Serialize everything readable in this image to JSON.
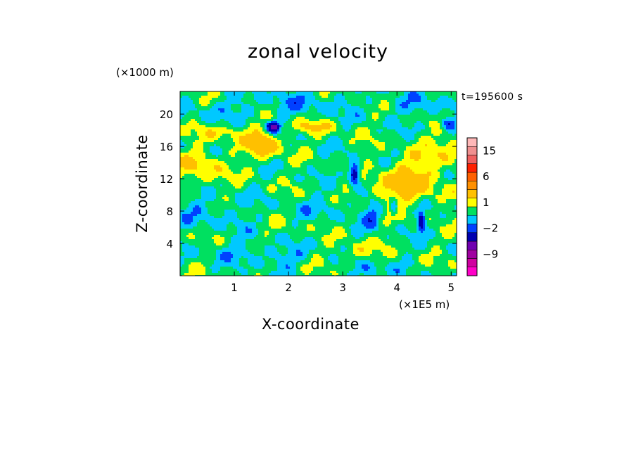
{
  "chart_data": {
    "type": "heatmap",
    "title": "zonal velocity",
    "xlabel": "X-coordinate",
    "ylabel": "Z-coordinate",
    "x_multiplier_label": "(×1E5 m)",
    "y_multiplier_label": "(×1000 m)",
    "time_label": "t=195600 s",
    "xlim": [
      0,
      5.1
    ],
    "ylim": [
      0,
      22.8
    ],
    "x_ticks": [
      "1",
      "2",
      "3",
      "4",
      "5"
    ],
    "y_ticks": [
      "4",
      "8",
      "12",
      "16",
      "20"
    ],
    "colorbar": {
      "levels": [
        -15,
        -12,
        -9,
        -6,
        -4,
        -2,
        -1,
        0,
        1,
        2,
        4,
        6,
        9,
        12,
        15,
        18
      ],
      "labels": [
        "15",
        "6",
        "1",
        "−2",
        "−9"
      ],
      "label_values": [
        15,
        6,
        1,
        -2,
        -9
      ],
      "colors": [
        "#ff00c8",
        "#d000a0",
        "#a000a0",
        "#7000b0",
        "#0000b0",
        "#0040ff",
        "#00c8ff",
        "#00e060",
        "#ffff00",
        "#ffc000",
        "#ff9000",
        "#ff6000",
        "#ff2000",
        "#f06060",
        "#f09090",
        "#ffb8b8"
      ]
    },
    "background_value": 0.4,
    "features": [
      {
        "kind": "warm",
        "x": 0.4,
        "z": 13.5,
        "sx": 0.32,
        "sy": 1.6,
        "amp": 1.6
      },
      {
        "kind": "warm",
        "x": 0.8,
        "z": 17.8,
        "sx": 0.35,
        "sy": 0.7,
        "amp": 1.2
      },
      {
        "kind": "warm",
        "x": 1.55,
        "z": 16.3,
        "sx": 0.22,
        "sy": 1.2,
        "amp": 2.6
      },
      {
        "kind": "cold",
        "x": 1.72,
        "z": 18.4,
        "sx": 0.08,
        "sy": 0.45,
        "amp": -5.5
      },
      {
        "kind": "warm",
        "x": 2.45,
        "z": 18.4,
        "sx": 0.3,
        "sy": 0.6,
        "amp": 1.4
      },
      {
        "kind": "cold",
        "x": 3.22,
        "z": 12.6,
        "sx": 0.07,
        "sy": 0.9,
        "amp": -4.5
      },
      {
        "kind": "cold",
        "x": 3.55,
        "z": 7.7,
        "sx": 0.12,
        "sy": 1.4,
        "amp": -1.6
      },
      {
        "kind": "cold",
        "x": 3.5,
        "z": 0.6,
        "sx": 0.2,
        "sy": 0.8,
        "amp": -1.5
      },
      {
        "kind": "warm",
        "x": 3.3,
        "z": 3.0,
        "sx": 0.25,
        "sy": 0.8,
        "amp": 1.3
      },
      {
        "kind": "warm",
        "x": 4.35,
        "z": 12.0,
        "sx": 0.4,
        "sy": 2.0,
        "amp": 2.0
      },
      {
        "kind": "warm",
        "x": 3.8,
        "z": 10.5,
        "sx": 0.3,
        "sy": 1.4,
        "amp": 1.3
      },
      {
        "kind": "cold",
        "x": 4.45,
        "z": 6.7,
        "sx": 0.05,
        "sy": 0.9,
        "amp": -3.8
      },
      {
        "kind": "cold",
        "x": 3.95,
        "z": 8.4,
        "sx": 0.05,
        "sy": 0.6,
        "amp": -3.0
      },
      {
        "kind": "cold",
        "x": 4.95,
        "z": 18.8,
        "sx": 0.1,
        "sy": 0.6,
        "amp": -2.8
      },
      {
        "kind": "warm",
        "x": 4.95,
        "z": 16.0,
        "sx": 0.25,
        "sy": 1.3,
        "amp": 1.5
      },
      {
        "kind": "cold",
        "x": 1.9,
        "z": 2.3,
        "sx": 0.35,
        "sy": 0.8,
        "amp": -1.0
      },
      {
        "kind": "cold",
        "x": 0.6,
        "z": 8.0,
        "sx": 0.5,
        "sy": 1.5,
        "amp": -0.8
      },
      {
        "kind": "cold",
        "x": 1.1,
        "z": 3.0,
        "sx": 0.4,
        "sy": 0.8,
        "amp": -0.9
      },
      {
        "kind": "cold",
        "x": 2.3,
        "z": 21.5,
        "sx": 0.6,
        "sy": 1.2,
        "amp": -0.9
      },
      {
        "kind": "cold",
        "x": 4.4,
        "z": 21.0,
        "sx": 0.5,
        "sy": 1.0,
        "amp": -0.9
      },
      {
        "kind": "cold",
        "x": 0.8,
        "z": 20.5,
        "sx": 0.5,
        "sy": 1.0,
        "amp": -0.8
      },
      {
        "kind": "cold",
        "x": 2.8,
        "z": 8.5,
        "sx": 0.4,
        "sy": 1.0,
        "amp": -0.7
      }
    ]
  }
}
